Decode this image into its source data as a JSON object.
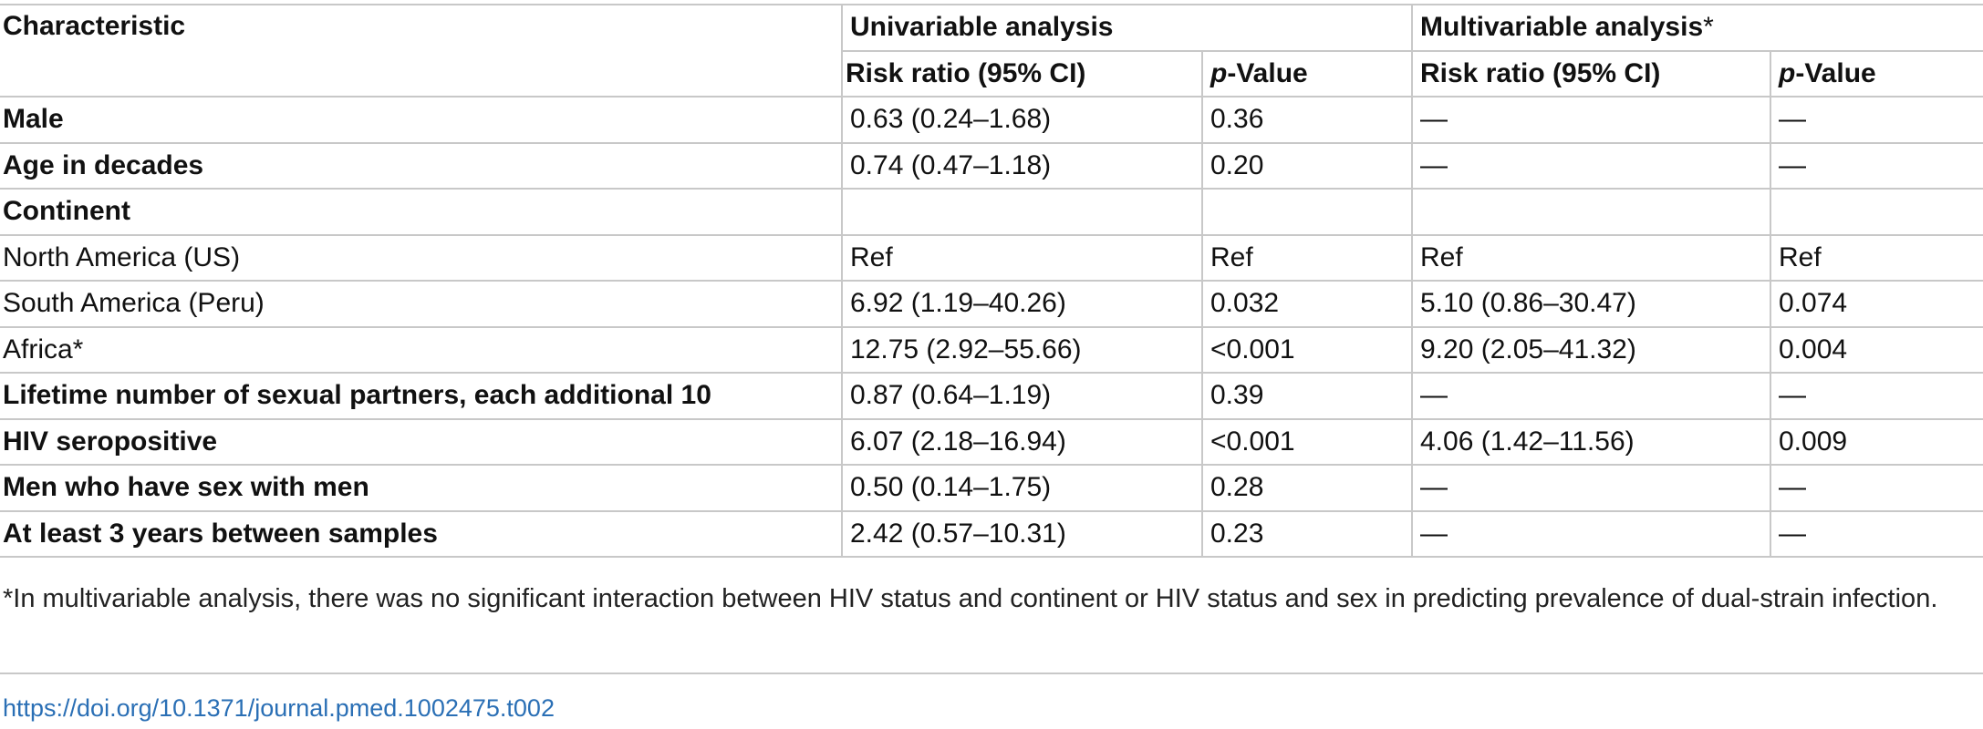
{
  "table": {
    "headers": {
      "characteristic": "Characteristic",
      "univariable": "Univariable analysis",
      "multivariable": "Multivariable analysis",
      "multivariable_mark": "*",
      "risk_ratio": "Risk ratio (95% CI)",
      "p_prefix": "p",
      "p_suffix": "-Value"
    },
    "rows": [
      {
        "label": "Male",
        "bold": true,
        "uni_rr": "0.63 (0.24–1.68)",
        "uni_p": "0.36",
        "multi_rr": "—",
        "multi_p": "—"
      },
      {
        "label": "Age in decades",
        "bold": true,
        "uni_rr": "0.74 (0.47–1.18)",
        "uni_p": "0.20",
        "multi_rr": "—",
        "multi_p": "—"
      },
      {
        "label": "Continent",
        "bold": true,
        "uni_rr": "",
        "uni_p": "",
        "multi_rr": "",
        "multi_p": ""
      },
      {
        "label": "North America (US)",
        "bold": false,
        "uni_rr": "Ref",
        "uni_p": "Ref",
        "multi_rr": "Ref",
        "multi_p": "Ref"
      },
      {
        "label": "South America (Peru)",
        "bold": false,
        "uni_rr": "6.92 (1.19–40.26)",
        "uni_p": "0.032",
        "multi_rr": "5.10 (0.86–30.47)",
        "multi_p": "0.074"
      },
      {
        "label": "Africa*",
        "bold": false,
        "uni_rr": "12.75 (2.92–55.66)",
        "uni_p": "<0.001",
        "multi_rr": "9.20 (2.05–41.32)",
        "multi_p": "0.004"
      },
      {
        "label": "Lifetime number of sexual partners, each additional 10",
        "bold": true,
        "uni_rr": "0.87 (0.64–1.19)",
        "uni_p": "0.39",
        "multi_rr": "—",
        "multi_p": "—"
      },
      {
        "label": "HIV seropositive",
        "bold": true,
        "uni_rr": "6.07 (2.18–16.94)",
        "uni_p": "<0.001",
        "multi_rr": "4.06 (1.42–11.56)",
        "multi_p": "0.009"
      },
      {
        "label": "Men who have sex with men",
        "bold": true,
        "uni_rr": "0.50 (0.14–1.75)",
        "uni_p": "0.28",
        "multi_rr": "—",
        "multi_p": "—"
      },
      {
        "label": "At least 3 years between samples",
        "bold": true,
        "uni_rr": "2.42 (0.57–10.31)",
        "uni_p": "0.23",
        "multi_rr": "—",
        "multi_p": "—"
      }
    ]
  },
  "footnote": "*In multivariable analysis, there was no significant interaction between HIV status and continent or HIV status and sex in predicting prevalence of dual-strain infection.",
  "doi_link": "https://doi.org/10.1371/journal.pmed.1002475.t002",
  "colors": {
    "border": "#c8c8c8",
    "link": "#2a6fb5"
  }
}
